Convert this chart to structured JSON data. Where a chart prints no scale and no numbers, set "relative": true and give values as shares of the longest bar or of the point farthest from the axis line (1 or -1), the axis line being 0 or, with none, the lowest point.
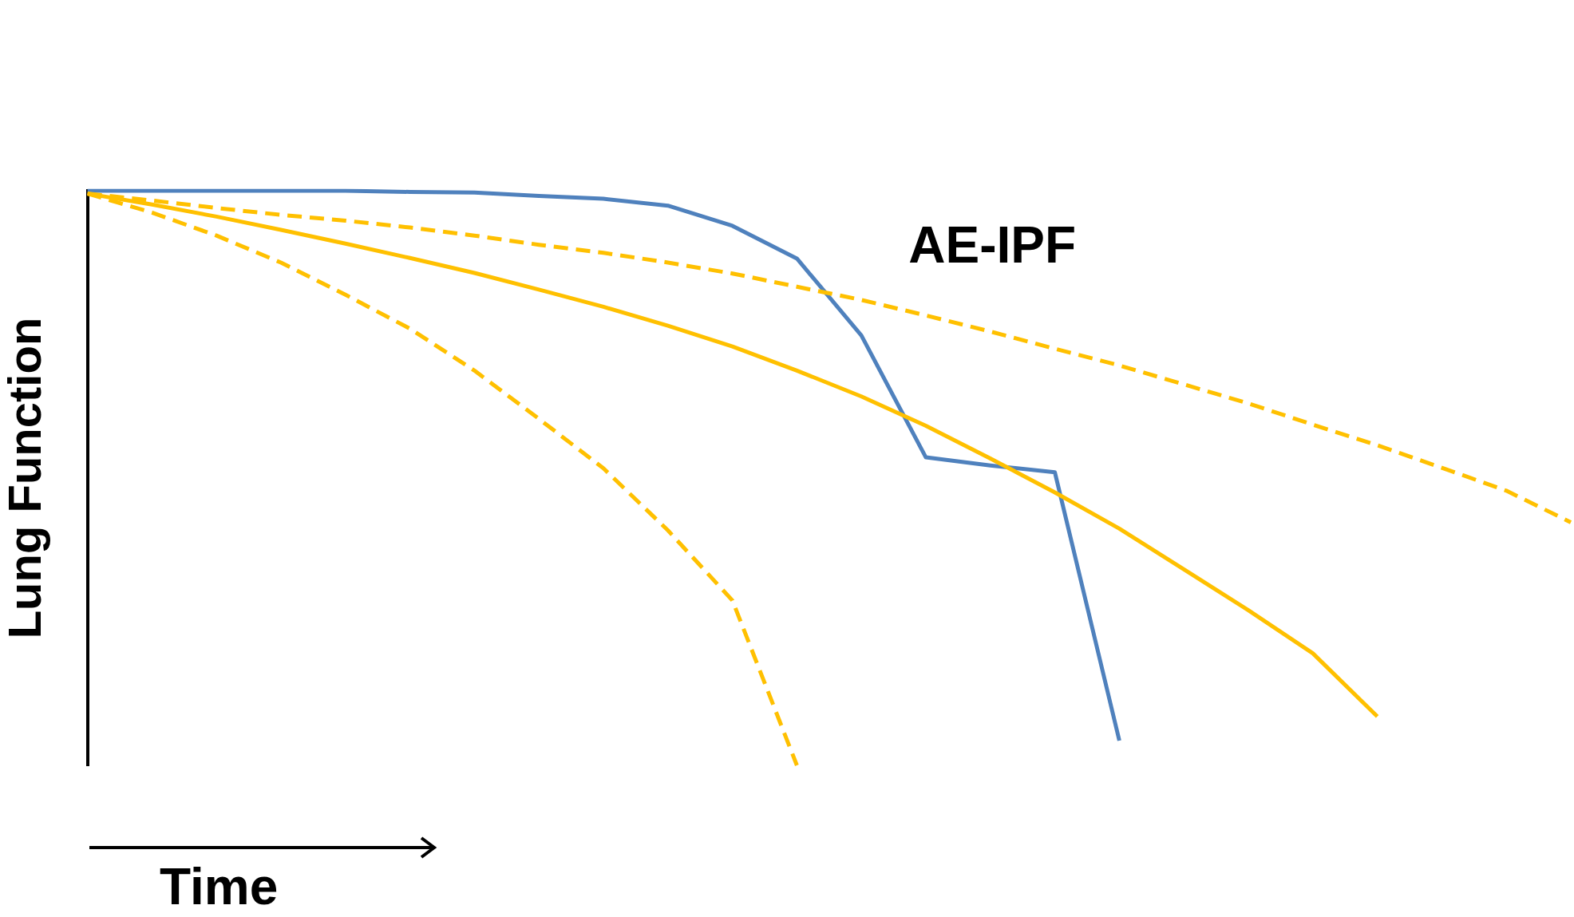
{
  "chart_data": {
    "type": "line",
    "relative": true,
    "xlabel": "Time",
    "ylabel": "Lung Function",
    "legend": false,
    "grid": false,
    "marker": "none",
    "categories": [
      null,
      null,
      null,
      null,
      null,
      null,
      null,
      null,
      null,
      null,
      null,
      null,
      null,
      null,
      null,
      null,
      null,
      null,
      null,
      null,
      null,
      null,
      null,
      null
    ],
    "series": [
      {
        "color": "#ffc000",
        "line_style": "dashed",
        "values": [
          0.995,
          0.983,
          0.97,
          0.958,
          0.948,
          0.936,
          0.922,
          0.906,
          0.892,
          0.875,
          0.856,
          0.833,
          0.81,
          0.783,
          0.755,
          0.725,
          0.696,
          0.663,
          0.63,
          0.593,
          0.557,
          0.518,
          0.478,
          0.423
        ]
      },
      {
        "color": "#ffc000",
        "line_style": "solid",
        "values": [
          0.995,
          0.976,
          0.955,
          0.932,
          0.908,
          0.883,
          0.857,
          0.828,
          0.798,
          0.765,
          0.729,
          0.687,
          0.642,
          0.591,
          0.534,
          0.475,
          0.412,
          0.341,
          0.27,
          0.195,
          0.085,
          null,
          null,
          null
        ]
      },
      {
        "color": "#ffc000",
        "line_style": "dashed",
        "values": [
          0.995,
          0.962,
          0.922,
          0.875,
          0.819,
          0.76,
          0.687,
          0.603,
          0.517,
          0.409,
          0.287,
          0,
          null,
          null,
          null,
          null,
          null,
          null,
          null,
          null,
          null,
          null,
          null,
          null
        ]
      },
      {
        "name": "AE-IPF",
        "color": "#4f81bd",
        "line_style": "solid",
        "values": [
          1,
          1,
          1,
          1,
          1,
          0.998,
          0.997,
          0.991,
          0.986,
          0.974,
          0.939,
          0.882,
          0.748,
          0.536,
          0.522,
          0.51,
          0.043,
          null,
          null,
          null,
          null,
          null,
          null,
          null
        ]
      }
    ]
  }
}
